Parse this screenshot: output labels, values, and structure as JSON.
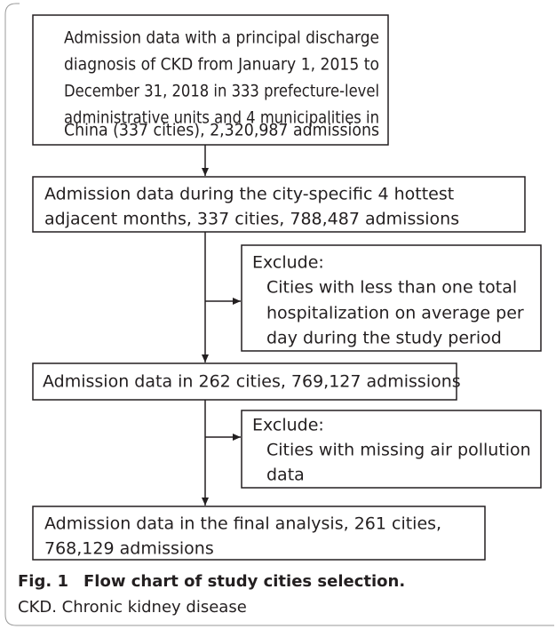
{
  "nodes": [
    {
      "lines": [
        "Admission data with a principal discharge",
        "diagnosis of CKD from January 1, 2015 to",
        "December 31, 2018 in 333 prefecture-level",
        "administrative units and 4 municipalities in",
        "China (337 cities), 2,320,987 admissions"
      ]
    },
    {
      "lines": [
        "Admission data during the city-specific 4 hottest",
        "adjacent months, 337 cities, 788,487 admissions"
      ]
    },
    {
      "heading": "Exclude:",
      "lines": [
        "Cities with less than one total",
        "hospitalization on average per",
        "day during the study period"
      ]
    },
    {
      "lines": [
        "Admission data in 262 cities, 769,127 admissions"
      ]
    },
    {
      "heading": "Exclude:",
      "lines": [
        "Cities with missing air pollution",
        "data"
      ]
    },
    {
      "lines": [
        "Admission data in the final analysis, 261 cities,",
        "768,129 admissions"
      ]
    }
  ],
  "caption": {
    "label": "Fig. 1",
    "title": "Flow chart of study cities selection.",
    "note": "CKD. Chronic kidney disease"
  }
}
